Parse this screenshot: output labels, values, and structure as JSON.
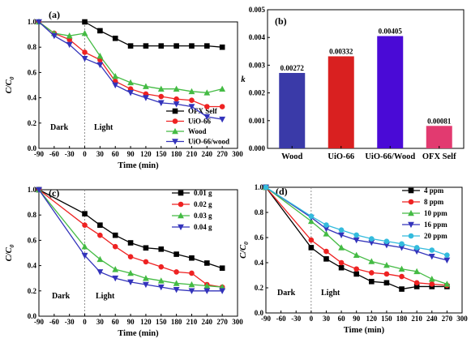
{
  "figure": {
    "panels": [
      "(a)",
      "(b)",
      "(c)",
      "(d)"
    ]
  },
  "chart_data": [
    {
      "id": "a",
      "type": "line",
      "panel_label": "(a)",
      "xlabel": "Time (min)",
      "ylabel": "C/C0",
      "xlim": [
        -90,
        300
      ],
      "ylim": [
        0.0,
        1.0
      ],
      "xticks": [
        -90,
        -60,
        -30,
        0,
        30,
        60,
        90,
        120,
        150,
        180,
        210,
        240,
        270,
        300
      ],
      "yticks": [
        0.0,
        0.2,
        0.4,
        0.6,
        0.8,
        1.0
      ],
      "legend_position": "bottom-right",
      "annotations": [
        "Dark",
        "Light"
      ],
      "divider_x": 0,
      "series": [
        {
          "name": "OFX Self",
          "color": "#000000",
          "marker": "square",
          "x": [
            0,
            30,
            60,
            90,
            120,
            150,
            180,
            210,
            240,
            270
          ],
          "y": [
            1.0,
            0.93,
            0.87,
            0.81,
            0.81,
            0.81,
            0.81,
            0.81,
            0.81,
            0.8
          ]
        },
        {
          "name": "UiO-66",
          "color": "#ee2222",
          "marker": "circle",
          "x": [
            -90,
            -60,
            -30,
            0,
            30,
            60,
            90,
            120,
            150,
            180,
            210,
            240,
            270
          ],
          "y": [
            1.0,
            0.91,
            0.86,
            0.76,
            0.7,
            0.53,
            0.47,
            0.43,
            0.41,
            0.39,
            0.38,
            0.33,
            0.33
          ]
        },
        {
          "name": "Wood",
          "color": "#44bb44",
          "marker": "triangle-up",
          "x": [
            -90,
            -60,
            -30,
            0,
            30,
            60,
            90,
            120,
            150,
            180,
            210,
            240,
            270
          ],
          "y": [
            1.0,
            0.91,
            0.89,
            0.91,
            0.73,
            0.57,
            0.52,
            0.49,
            0.47,
            0.47,
            0.45,
            0.44,
            0.47
          ]
        },
        {
          "name": "UiO-66/wood",
          "color": "#3333bb",
          "marker": "triangle-down",
          "x": [
            -90,
            -60,
            -30,
            0,
            30,
            60,
            90,
            120,
            150,
            180,
            210,
            240,
            270
          ],
          "y": [
            1.0,
            0.89,
            0.82,
            0.71,
            0.66,
            0.5,
            0.44,
            0.4,
            0.36,
            0.35,
            0.33,
            0.25,
            0.23
          ]
        }
      ]
    },
    {
      "id": "b",
      "type": "bar",
      "panel_label": "(b)",
      "xlabel": "",
      "ylabel": "k",
      "ylim": [
        0.0,
        0.005
      ],
      "yticks": [
        "0.000",
        "0.001",
        "0.002",
        "0.003",
        "0.004",
        "0.005"
      ],
      "categories": [
        "Wood",
        "UiO-66",
        "UiO-66/Wood",
        "OFX Self"
      ],
      "values": [
        0.00272,
        0.00332,
        0.00405,
        0.00081
      ],
      "value_labels": [
        "0.00272",
        "0.00332",
        "0.00405",
        "0.00081"
      ],
      "colors": [
        "#3a3aa8",
        "#d92020",
        "#4a0ad6",
        "#e23a70"
      ]
    },
    {
      "id": "c",
      "type": "line",
      "panel_label": "(c)",
      "xlabel": "Time (min)",
      "ylabel": "C/C0",
      "xlim": [
        -90,
        300
      ],
      "ylim": [
        0.0,
        1.0
      ],
      "xticks": [
        -90,
        -60,
        -30,
        0,
        30,
        60,
        90,
        120,
        150,
        180,
        210,
        240,
        270,
        300
      ],
      "yticks": [
        0.0,
        0.2,
        0.4,
        0.6,
        0.8,
        1.0
      ],
      "legend_position": "top-right",
      "annotations": [
        "Dark",
        "Light"
      ],
      "divider_x": 0,
      "series": [
        {
          "name": "0.01 g",
          "color": "#000000",
          "marker": "square",
          "x": [
            -90,
            0,
            30,
            60,
            90,
            120,
            150,
            180,
            210,
            240,
            270
          ],
          "y": [
            1.0,
            0.81,
            0.72,
            0.64,
            0.58,
            0.54,
            0.53,
            0.49,
            0.46,
            0.42,
            0.38
          ]
        },
        {
          "name": "0.02 g",
          "color": "#ee2222",
          "marker": "circle",
          "x": [
            -90,
            0,
            30,
            60,
            90,
            120,
            150,
            180,
            210,
            240,
            270
          ],
          "y": [
            1.0,
            0.72,
            0.64,
            0.55,
            0.47,
            0.43,
            0.39,
            0.35,
            0.34,
            0.25,
            0.23
          ]
        },
        {
          "name": "0.03 g",
          "color": "#44bb44",
          "marker": "triangle-up",
          "x": [
            -90,
            0,
            30,
            60,
            90,
            120,
            150,
            180,
            210,
            240,
            270
          ],
          "y": [
            1.0,
            0.55,
            0.45,
            0.37,
            0.34,
            0.3,
            0.28,
            0.26,
            0.25,
            0.24,
            0.23
          ]
        },
        {
          "name": "0.04 g",
          "color": "#3333bb",
          "marker": "triangle-down",
          "x": [
            -90,
            0,
            30,
            60,
            90,
            120,
            150,
            180,
            210,
            240,
            270
          ],
          "y": [
            1.0,
            0.48,
            0.35,
            0.3,
            0.27,
            0.25,
            0.23,
            0.21,
            0.2,
            0.2,
            0.2
          ]
        }
      ]
    },
    {
      "id": "d",
      "type": "line",
      "panel_label": "(d)",
      "xlabel": "Time (min)",
      "ylabel": "C/C0",
      "xlim": [
        -90,
        300
      ],
      "ylim": [
        0.0,
        1.0
      ],
      "xticks": [
        -90,
        -60,
        -30,
        0,
        30,
        60,
        90,
        120,
        150,
        180,
        210,
        240,
        270,
        300
      ],
      "yticks": [
        0.0,
        0.2,
        0.4,
        0.6,
        0.8,
        1.0
      ],
      "legend_position": "top-right",
      "annotations": [
        "Dark",
        "Light"
      ],
      "divider_x": 0,
      "series": [
        {
          "name": "4 ppm",
          "color": "#000000",
          "marker": "square",
          "x": [
            -90,
            0,
            30,
            60,
            90,
            120,
            150,
            180,
            210,
            240,
            270
          ],
          "y": [
            1.0,
            0.52,
            0.43,
            0.36,
            0.31,
            0.25,
            0.24,
            0.19,
            0.21,
            0.21,
            0.21
          ]
        },
        {
          "name": "8 ppm",
          "color": "#ee2222",
          "marker": "circle",
          "x": [
            -90,
            0,
            30,
            60,
            90,
            120,
            150,
            180,
            210,
            240,
            270
          ],
          "y": [
            1.0,
            0.58,
            0.49,
            0.4,
            0.35,
            0.32,
            0.31,
            0.29,
            0.24,
            0.23,
            0.22
          ]
        },
        {
          "name": "10 ppm",
          "color": "#44bb44",
          "marker": "triangle-up",
          "x": [
            -90,
            0,
            30,
            60,
            90,
            120,
            150,
            180,
            210,
            240,
            270
          ],
          "y": [
            1.0,
            0.73,
            0.63,
            0.52,
            0.46,
            0.41,
            0.38,
            0.35,
            0.33,
            0.27,
            0.23
          ]
        },
        {
          "name": "16 ppm",
          "color": "#3333bb",
          "marker": "triangle-down",
          "x": [
            -90,
            0,
            30,
            60,
            90,
            120,
            150,
            180,
            210,
            240,
            270
          ],
          "y": [
            1.0,
            0.76,
            0.67,
            0.62,
            0.58,
            0.56,
            0.54,
            0.52,
            0.49,
            0.45,
            0.42
          ]
        },
        {
          "name": "20 ppm",
          "color": "#33bbdd",
          "marker": "circle",
          "x": [
            -90,
            0,
            30,
            60,
            90,
            120,
            150,
            180,
            210,
            240,
            270
          ],
          "y": [
            1.0,
            0.77,
            0.7,
            0.66,
            0.62,
            0.59,
            0.57,
            0.55,
            0.52,
            0.5,
            0.46
          ]
        }
      ]
    }
  ]
}
